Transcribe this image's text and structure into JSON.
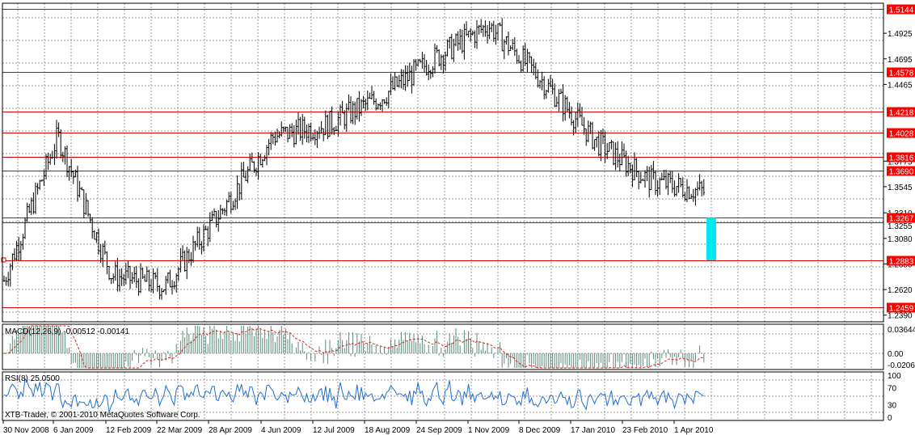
{
  "price_axis": {
    "ticks": [
      "1.4925",
      "1.4695",
      "1.4465",
      "1.3775",
      "1.3545",
      "1.3310",
      "1.3080",
      "1.2850",
      "1.2620",
      "1.2390"
    ],
    "partial_ticks": [
      "1.3255"
    ],
    "levels": [
      {
        "value": "1.5144",
        "price": 1.5144
      },
      {
        "value": "1.4578",
        "price": 1.4578
      },
      {
        "value": "1.4218",
        "price": 1.4218
      },
      {
        "value": "1.4028",
        "price": 1.4028
      },
      {
        "value": "1.3816",
        "price": 1.3816
      },
      {
        "value": "1.3690",
        "price": 1.369
      },
      {
        "value": "1.3267",
        "price": 1.3267
      },
      {
        "value": "1.2883",
        "price": 1.2883
      },
      {
        "value": "1.2459",
        "price": 1.2459
      }
    ],
    "extra_line_price": 1.3225,
    "ticks_values": [
      1.4925,
      1.4695,
      1.4465,
      1.3775,
      1.3545,
      1.331,
      1.308,
      1.285,
      1.262,
      1.239
    ],
    "range": [
      1.233,
      1.5195
    ]
  },
  "date_axis": {
    "labels": [
      "30 Nov 2008",
      "6 Jan 2009",
      "12 Feb 2009",
      "22 Mar 2009",
      "28 Apr 2009",
      "4 Jun 2009",
      "12 Jul 2009",
      "18 Aug 2009",
      "24 Sep 2009",
      "1 Nov 2009",
      "8 Dec 2009",
      "17 Jan 2010",
      "23 Feb 2010",
      "1 Apr 2010"
    ]
  },
  "macd": {
    "label": "MACD(12,26,9) -0.00512 -0.00141",
    "ticks": [
      "0.03644",
      "0.00",
      "-0.02062"
    ]
  },
  "rsi": {
    "label": "RSI(8) 25.0500",
    "ticks": [
      "100",
      "70",
      "30",
      "0"
    ]
  },
  "copyright": "XTB-Trader, © 2001-2010 MetaQuotes Software Corp.",
  "colors": {
    "level_line": "#dd0000",
    "level_label_bg": "#ff0000",
    "bars": "#000000",
    "highlight_box": "#00e5ee",
    "macd_hist": "#5c8a7a",
    "macd_signal": "#e02020",
    "rsi_line": "#1f6fd0",
    "grid": "#9a9a9a"
  },
  "chart_data": {
    "type": "line",
    "title": "",
    "xlabel": "",
    "ylabel": "",
    "x": [
      "30 Nov 2008",
      "6 Jan 2009",
      "12 Feb 2009",
      "22 Mar 2009",
      "28 Apr 2009",
      "4 Jun 2009",
      "12 Jul 2009",
      "18 Aug 2009",
      "24 Sep 2009",
      "1 Nov 2009",
      "8 Dec 2009",
      "17 Jan 2010",
      "23 Feb 2010",
      "1 Apr 2010"
    ],
    "series": [
      {
        "values": [
          1.27,
          1.4,
          1.275,
          1.265,
          1.33,
          1.4,
          1.41,
          1.435,
          1.47,
          1.5,
          1.45,
          1.395,
          1.36,
          1.35
        ]
      }
    ],
    "ylim": [
      1.239,
      1.5144
    ],
    "grid": true
  }
}
